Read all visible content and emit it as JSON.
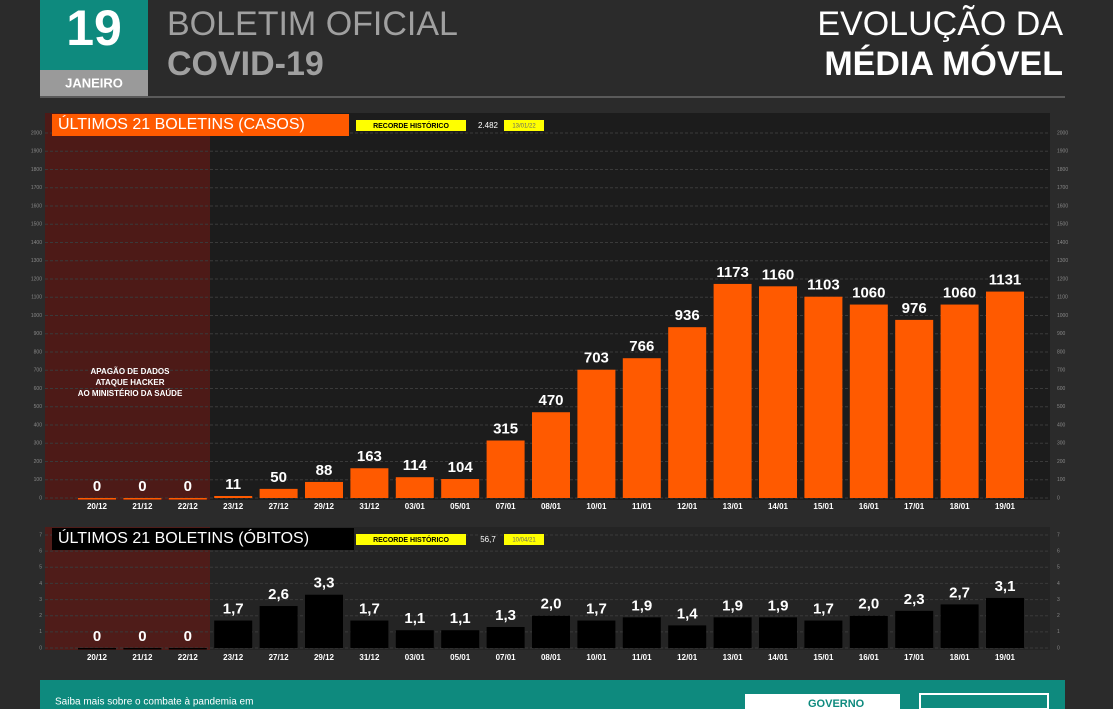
{
  "header": {
    "day": "19",
    "month": "JANEIRO",
    "title_line1": "BOLETIM OFICIAL",
    "title_line2": "COVID-19",
    "right_line1": "EVOLUÇÃO DA",
    "right_line2": "MÉDIA MÓVEL"
  },
  "chart_data": [
    {
      "type": "bar",
      "title": "ÚLTIMOS 21 BOLETINS (CASOS)",
      "record": {
        "label": "RECORDE HISTÓRICO",
        "value": {
          "value": 2482,
          "label": "2.482"
        },
        "date": "13/01/22"
      },
      "annotation": [
        "APAGÃO DE DADOS",
        "ATAQUE HACKER",
        "AO MINISTÉRIO DA SAÚDE"
      ],
      "categories": [
        "20/12",
        "21/12",
        "22/12",
        "23/12",
        "27/12",
        "29/12",
        "31/12",
        "03/01",
        "05/01",
        "07/01",
        "08/01",
        "10/01",
        "11/01",
        "12/01",
        "13/01",
        "14/01",
        "15/01",
        "16/01",
        "17/01",
        "18/01",
        "19/01"
      ],
      "values": [
        0,
        0,
        0,
        11,
        50,
        88,
        163,
        114,
        104,
        315,
        470,
        703,
        766,
        936,
        1173,
        1160,
        1103,
        1060,
        976,
        1060,
        1131
      ],
      "color": "#ff5a00",
      "ylim": [
        0,
        2000
      ],
      "yticks": [
        0,
        100,
        200,
        300,
        400,
        500,
        600,
        700,
        800,
        900,
        1000,
        1100,
        1200,
        1300,
        1400,
        1500,
        1600,
        1700,
        1800,
        1900,
        2000
      ],
      "grid": true
    },
    {
      "type": "bar",
      "title": "ÚLTIMOS 21 BOLETINS (ÓBITOS)",
      "record": {
        "label": "RECORDE HISTÓRICO",
        "value": {
          "value": 56.7,
          "label": "56,7"
        },
        "date": "10/04/21"
      },
      "categories": [
        "20/12",
        "21/12",
        "22/12",
        "23/12",
        "27/12",
        "29/12",
        "31/12",
        "03/01",
        "05/01",
        "07/01",
        "08/01",
        "10/01",
        "11/01",
        "12/01",
        "13/01",
        "14/01",
        "15/01",
        "16/01",
        "17/01",
        "18/01",
        "19/01"
      ],
      "values": [
        0,
        0,
        0,
        1.7,
        2.6,
        3.3,
        1.7,
        1.1,
        1.1,
        1.3,
        2.0,
        1.7,
        1.9,
        1.4,
        1.9,
        1.9,
        1.7,
        2.0,
        2.3,
        2.7,
        3.1
      ],
      "value_labels": [
        "0",
        "0",
        "0",
        "1,7",
        "2,6",
        "3,3",
        "1,7",
        "1,1",
        "1,1",
        "1,3",
        "2,0",
        "1,7",
        "1,9",
        "1,4",
        "1,9",
        "1,9",
        "1,7",
        "2,0",
        "2,3",
        "2,7",
        "3,1"
      ],
      "color": "#000000",
      "ylim": [
        0,
        7
      ],
      "yticks": [
        0,
        1,
        2,
        3,
        4,
        5,
        6,
        7
      ],
      "grid": true
    }
  ],
  "footer": {
    "text": "Saiba mais sobre o combate à pandemia em",
    "logo": "GOVERNO"
  }
}
